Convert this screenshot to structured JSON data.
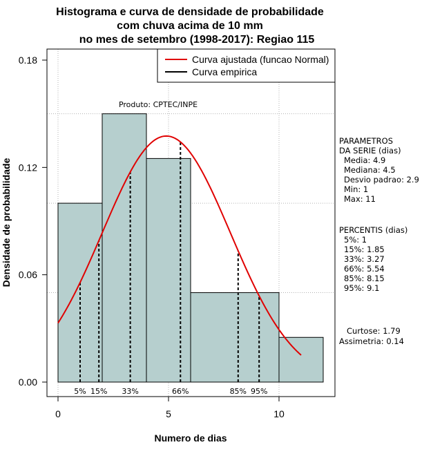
{
  "chart_data": {
    "type": "bar",
    "title_lines": [
      "Histograma e curva de densidade de probabilidade",
      "com chuva acima de 10 mm",
      "no mes de setembro (1998-2017): Regiao 115"
    ],
    "xlabel": "Numero de dias",
    "ylabel": "Densidade de probabilidade",
    "xlim": [
      -0.5,
      12.5
    ],
    "ylim": [
      0,
      0.18
    ],
    "x_ticks": [
      0,
      5,
      10
    ],
    "y_ticks": [
      0.0,
      0.06,
      0.12,
      0.18
    ],
    "y_tick_labels": [
      "0.00",
      "0.06",
      "0.12",
      "0.18"
    ],
    "grid_x": [
      0,
      5,
      10
    ],
    "grid_y": [
      0.05,
      0.1,
      0.15
    ],
    "bins": [
      {
        "from": 0,
        "to": 2,
        "density": 0.1
      },
      {
        "from": 2,
        "to": 4,
        "density": 0.15
      },
      {
        "from": 4,
        "to": 6,
        "density": 0.125
      },
      {
        "from": 6,
        "to": 10,
        "density": 0.05
      },
      {
        "from": 10,
        "to": 12,
        "density": 0.025
      }
    ],
    "bar_color": "#b6cfce",
    "normal_curve": {
      "mean": 4.9,
      "sd": 2.9,
      "x_from": 0,
      "x_to": 11,
      "color": "#e00000"
    },
    "percentile_lines": [
      {
        "label": "5%",
        "x": 1
      },
      {
        "label": "15%",
        "x": 1.85
      },
      {
        "label": "33%",
        "x": 3.27
      },
      {
        "label": "66%",
        "x": 5.54
      },
      {
        "label": "85%",
        "x": 8.15
      },
      {
        "label": "95%",
        "x": 9.1
      }
    ],
    "legend": {
      "position": "top-right",
      "entries": [
        {
          "label": "Curva ajustada (funcao Normal)",
          "color": "#e00000"
        },
        {
          "label": "Curva empirica",
          "color": "#000000"
        }
      ]
    },
    "product_label": "Produto: CPTEC/INPE",
    "parameters": {
      "heading": [
        "PARAMETROS",
        "DA SERIE (dias)"
      ],
      "lines": [
        "Media: 4.9",
        "Mediana: 4.5",
        "Desvio padrao: 2.9",
        "Min: 1",
        "Max: 11"
      ]
    },
    "percentis": {
      "heading": "PERCENTIS (dias)",
      "lines": [
        "5%: 1",
        "15%: 1.85",
        "33%: 3.27",
        "66%: 5.54",
        "85%: 8.15",
        "95%: 9.1"
      ]
    },
    "shape": {
      "lines": [
        "Curtose: 1.79",
        "Assimetria: 0.14"
      ]
    }
  }
}
